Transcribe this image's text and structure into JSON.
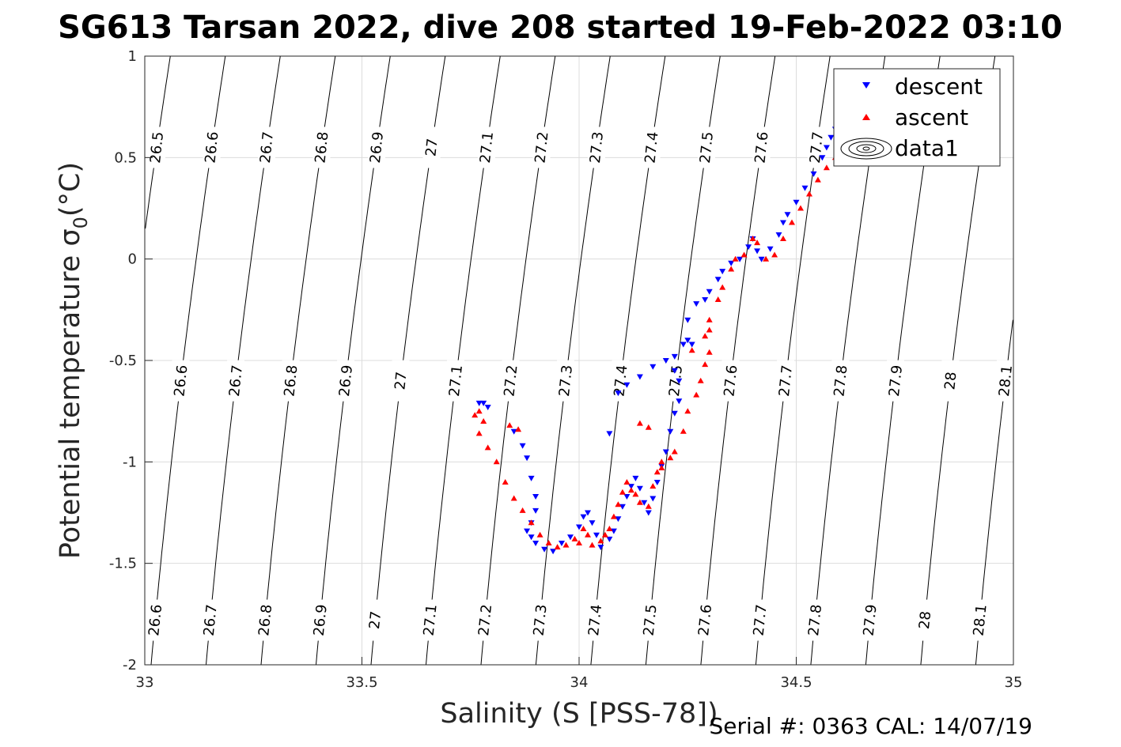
{
  "chart_data": {
    "type": "scatter",
    "title": "SG613 Tarsan 2022, dive 208 started 19-Feb-2022 03:10",
    "xlabel": "Salinity (S [PSS-78])",
    "ylabel": "Potential temperature σ",
    "ylabel_subscript": "0",
    "ylabel_unit": "(°C)",
    "xlim": [
      33,
      35
    ],
    "ylim": [
      -2,
      1
    ],
    "xticks": [
      "33",
      "33.5",
      "34",
      "34.5",
      "35"
    ],
    "yticks": [
      "-2",
      "-1.5",
      "-1",
      "-0.5",
      "0",
      "0.5",
      "1"
    ],
    "grid": true,
    "legend_position": "top-right",
    "legend": [
      "descent",
      "ascent",
      "data1"
    ],
    "colors": {
      "descent": "#0000ff",
      "ascent": "#ff0000",
      "contour": "#000000",
      "grid": "#dcdcdc"
    },
    "isopycnals": [
      26.5,
      26.6,
      26.7,
      26.8,
      26.9,
      27,
      27.1,
      27.2,
      27.3,
      27.4,
      27.5,
      27.6,
      27.7,
      27.8,
      27.9,
      28,
      28.1
    ],
    "isopycnal_labels": {
      "top": [
        "26.5",
        "26.6",
        "26.7",
        "26.8",
        "26.9",
        "27",
        "27.1",
        "27.2",
        "27.3",
        "27.4",
        "27.5",
        "27.6",
        "27.7"
      ],
      "middle": [
        "26.6",
        "26.7",
        "26.8",
        "26.9",
        "27",
        "27.1",
        "27.2",
        "27.3",
        "27.4",
        "27.5",
        "27.6",
        "27.7",
        "27.8",
        "27.9",
        "28",
        "28.1"
      ],
      "bottom": [
        "26.6",
        "26.7",
        "26.8",
        "26.9",
        "27",
        "27.1",
        "27.2",
        "27.3",
        "27.4",
        "27.5",
        "27.6",
        "27.7",
        "27.8",
        "27.9",
        "28",
        "28.1"
      ]
    },
    "series": [
      {
        "name": "descent",
        "marker": "triangle-down",
        "points": [
          [
            33.77,
            -0.71
          ],
          [
            33.78,
            -0.71
          ],
          [
            33.79,
            -0.73
          ],
          [
            33.85,
            -0.85
          ],
          [
            33.87,
            -0.92
          ],
          [
            33.88,
            -0.98
          ],
          [
            33.89,
            -1.08
          ],
          [
            33.9,
            -1.17
          ],
          [
            33.9,
            -1.24
          ],
          [
            33.89,
            -1.3
          ],
          [
            33.88,
            -1.34
          ],
          [
            33.89,
            -1.37
          ],
          [
            33.9,
            -1.4
          ],
          [
            33.92,
            -1.43
          ],
          [
            33.94,
            -1.44
          ],
          [
            33.96,
            -1.4
          ],
          [
            33.98,
            -1.37
          ],
          [
            34.0,
            -1.32
          ],
          [
            34.01,
            -1.27
          ],
          [
            34.02,
            -1.25
          ],
          [
            34.03,
            -1.3
          ],
          [
            34.04,
            -1.36
          ],
          [
            34.05,
            -1.42
          ],
          [
            34.07,
            -1.38
          ],
          [
            34.08,
            -1.34
          ],
          [
            34.09,
            -1.28
          ],
          [
            34.1,
            -1.22
          ],
          [
            34.11,
            -1.17
          ],
          [
            34.12,
            -1.12
          ],
          [
            34.13,
            -1.08
          ],
          [
            34.14,
            -1.13
          ],
          [
            34.15,
            -1.2
          ],
          [
            34.16,
            -1.25
          ],
          [
            34.17,
            -1.18
          ],
          [
            34.18,
            -1.1
          ],
          [
            34.19,
            -1.02
          ],
          [
            34.2,
            -0.95
          ],
          [
            34.21,
            -0.85
          ],
          [
            34.22,
            -0.76
          ],
          [
            34.23,
            -0.7
          ],
          [
            34.23,
            -0.6
          ],
          [
            34.22,
            -0.55
          ],
          [
            34.22,
            -0.48
          ],
          [
            34.24,
            -0.42
          ],
          [
            34.25,
            -0.4
          ],
          [
            34.26,
            -0.42
          ],
          [
            34.25,
            -0.3
          ],
          [
            34.27,
            -0.22
          ],
          [
            34.29,
            -0.2
          ],
          [
            34.3,
            -0.16
          ],
          [
            34.32,
            -0.1
          ],
          [
            34.33,
            -0.06
          ],
          [
            34.35,
            -0.02
          ],
          [
            34.37,
            0.0
          ],
          [
            34.39,
            0.06
          ],
          [
            34.4,
            0.1
          ],
          [
            34.41,
            0.04
          ],
          [
            34.42,
            0.0
          ],
          [
            34.44,
            0.05
          ],
          [
            34.46,
            0.12
          ],
          [
            34.47,
            0.18
          ],
          [
            34.48,
            0.22
          ],
          [
            34.5,
            0.28
          ],
          [
            34.52,
            0.35
          ],
          [
            34.54,
            0.42
          ],
          [
            34.56,
            0.5
          ],
          [
            34.57,
            0.55
          ],
          [
            34.58,
            0.6
          ],
          [
            34.59,
            0.64
          ],
          [
            34.07,
            -0.86
          ],
          [
            34.09,
            -0.66
          ],
          [
            34.11,
            -0.62
          ],
          [
            34.14,
            -0.58
          ],
          [
            34.17,
            -0.53
          ],
          [
            34.2,
            -0.5
          ]
        ]
      },
      {
        "name": "ascent",
        "marker": "triangle-up",
        "points": [
          [
            33.76,
            -0.77
          ],
          [
            33.77,
            -0.75
          ],
          [
            33.78,
            -0.8
          ],
          [
            33.77,
            -0.86
          ],
          [
            33.79,
            -0.93
          ],
          [
            33.81,
            -1.0
          ],
          [
            33.83,
            -1.1
          ],
          [
            33.85,
            -1.18
          ],
          [
            33.87,
            -1.24
          ],
          [
            33.89,
            -1.3
          ],
          [
            33.91,
            -1.36
          ],
          [
            33.93,
            -1.4
          ],
          [
            33.95,
            -1.42
          ],
          [
            33.97,
            -1.41
          ],
          [
            33.99,
            -1.38
          ],
          [
            34.0,
            -1.4
          ],
          [
            34.01,
            -1.33
          ],
          [
            34.02,
            -1.36
          ],
          [
            34.03,
            -1.41
          ],
          [
            34.05,
            -1.39
          ],
          [
            34.06,
            -1.36
          ],
          [
            34.07,
            -1.33
          ],
          [
            34.08,
            -1.27
          ],
          [
            34.09,
            -1.21
          ],
          [
            34.1,
            -1.15
          ],
          [
            34.11,
            -1.1
          ],
          [
            34.12,
            -1.14
          ],
          [
            34.13,
            -1.16
          ],
          [
            34.14,
            -1.2
          ],
          [
            34.16,
            -1.22
          ],
          [
            34.17,
            -1.12
          ],
          [
            34.18,
            -1.05
          ],
          [
            34.19,
            -1.0
          ],
          [
            34.21,
            -0.98
          ],
          [
            34.22,
            -0.95
          ],
          [
            34.24,
            -0.85
          ],
          [
            34.25,
            -0.75
          ],
          [
            34.27,
            -0.67
          ],
          [
            34.28,
            -0.6
          ],
          [
            34.29,
            -0.52
          ],
          [
            34.3,
            -0.46
          ],
          [
            34.29,
            -0.38
          ],
          [
            34.3,
            -0.3
          ],
          [
            34.32,
            -0.2
          ],
          [
            34.33,
            -0.14
          ],
          [
            34.35,
            -0.05
          ],
          [
            34.36,
            0.0
          ],
          [
            34.38,
            0.02
          ],
          [
            34.4,
            0.1
          ],
          [
            34.41,
            0.08
          ],
          [
            34.43,
            0.0
          ],
          [
            34.45,
            0.02
          ],
          [
            34.47,
            0.1
          ],
          [
            34.49,
            0.18
          ],
          [
            34.51,
            0.25
          ],
          [
            34.53,
            0.32
          ],
          [
            34.55,
            0.39
          ],
          [
            34.57,
            0.45
          ],
          [
            34.59,
            0.5
          ],
          [
            34.6,
            0.56
          ],
          [
            33.84,
            -0.82
          ],
          [
            33.86,
            -0.84
          ],
          [
            34.14,
            -0.81
          ],
          [
            34.16,
            -0.83
          ],
          [
            34.19,
            -1.03
          ],
          [
            34.26,
            -0.45
          ],
          [
            34.3,
            -0.35
          ]
        ]
      },
      {
        "name": "data1",
        "type": "contour",
        "salinity_range": [
          33,
          35
        ],
        "temperature_range": [
          -2,
          1
        ]
      }
    ]
  },
  "footer": {
    "serial": "Serial #: 0363  CAL: 14/07/19"
  }
}
